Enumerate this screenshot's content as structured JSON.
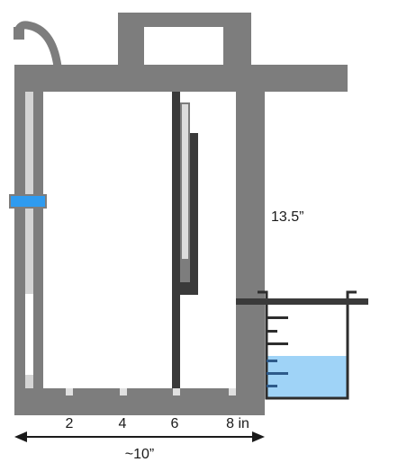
{
  "diagram": {
    "height_label": "13.5”",
    "width_label": "~10”",
    "scale_labels": [
      "2",
      "4",
      "6",
      "8 in"
    ]
  },
  "colors": {
    "frame": "#7d7d7d",
    "rail_dark": "#3a3a3a",
    "rail_light": "#d4d4d4",
    "slider": "#2f9bef",
    "water": "#9fd3f7",
    "beaker_outline": "#2d2d2d",
    "text": "#1a1a1a"
  },
  "icons": {
    "faucet": "curved-spout-icon",
    "arrow": "double-headed-arrow-icon"
  }
}
